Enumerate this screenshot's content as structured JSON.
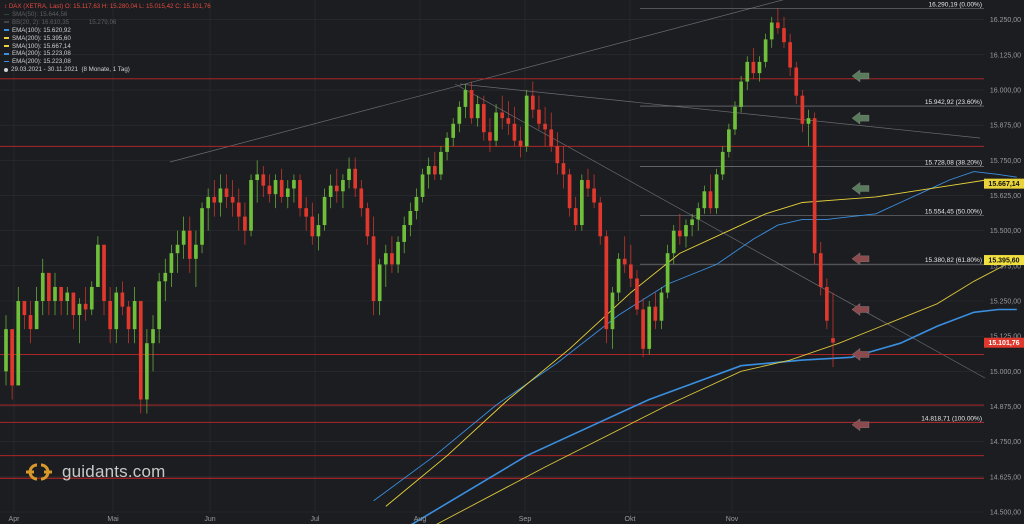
{
  "header": {
    "symbol_prefix": "↕",
    "symbol": "DAX (XETRA, Last)",
    "ohlc": "O: 15.117,63   H: 15.280,04   L: 15.015,42   C: 15.101,76"
  },
  "legend": [
    {
      "label": "SMA(50)",
      "value": "15.644,56",
      "color": "#3fa34d",
      "dim": true
    },
    {
      "label": "BB(20, 2)",
      "value": "16.610,35",
      "value2": "15.279,06",
      "color": "#8a8a8a",
      "dim": true
    },
    {
      "label": "EMA(100)",
      "value": "15.620,92",
      "color": "#3a8fe0",
      "dim": false
    },
    {
      "label": "SMA(200)",
      "value": "15.395,60",
      "color": "#e8d33a",
      "dim": false
    },
    {
      "label": "SMA(100)",
      "value": "15.667,14",
      "color": "#e8d33a",
      "dim": false
    },
    {
      "label": "EMA(200)",
      "value": "15.223,08",
      "color": "#3a8fe0",
      "dim": false
    },
    {
      "label": "EMA(200)",
      "value": "15.223,08",
      "color": "#3a8fe0",
      "dim": false
    }
  ],
  "date_range": "29.03.2021 - 30.11.2021",
  "date_range_note": "(8 Monate, 1 Tag)",
  "logo_text": "guidants.com",
  "colors": {
    "background": "#1c1d21",
    "up": "#6fbf3b",
    "down": "#e0382c",
    "grid": "#2c2e33",
    "fib": "#c0282a",
    "ema100": "#3a8fe0",
    "ema200": "#3a8fe0",
    "sma100": "#e8d33a",
    "sma200": "#d8c43a",
    "price_badge": "#e0382c",
    "sma100_badge": "#e8d33a",
    "sma200_badge": "#f0e040",
    "arrow_green": "#5a7a5c",
    "arrow_red": "#8a4a4e"
  },
  "chart_data": {
    "type": "candlestick",
    "x_tick_labels": [
      "Apr",
      "Mai",
      "Jun",
      "Jul",
      "Aug",
      "Sep",
      "Okt",
      "Nov"
    ],
    "y_tick_labels": [
      "14.500,00",
      "14.625,00",
      "14.750,00",
      "14.875,00",
      "15.000,00",
      "15.125,00",
      "15.250,00",
      "15.375,00",
      "15.500,00",
      "15.625,00",
      "15.750,00",
      "15.875,00",
      "16.000,00",
      "16.125,00",
      "16.250,00"
    ],
    "ylim": [
      14500,
      16320
    ],
    "fib_levels": [
      {
        "price": 16290.19,
        "label": "16.290,19 (0.00%)"
      },
      {
        "price": 15942.92,
        "label": "15.942,92 (23.60%)"
      },
      {
        "price": 15728.08,
        "label": "15.728,08 (38.20%)"
      },
      {
        "price": 15554.45,
        "label": "15.554,45 (50.00%)"
      },
      {
        "price": 15380.82,
        "label": "15.380,82 (61.80%)"
      },
      {
        "price": 14818.71,
        "label": "14.818,71 (100.00%)"
      }
    ],
    "horizontal_red_lines": [
      16040,
      15800,
      15060,
      14880,
      14818.71,
      14700,
      14620
    ],
    "badges": [
      {
        "price": 15667.14,
        "label": "15.667,14",
        "kind": "sma100"
      },
      {
        "price": 15395.6,
        "label": "15.395,60",
        "kind": "sma200"
      },
      {
        "price": 15101.76,
        "label": "15.101,76",
        "kind": "price"
      }
    ],
    "arrows": [
      {
        "price": 16050,
        "color": "green"
      },
      {
        "price": 15900,
        "color": "green"
      },
      {
        "price": 15650,
        "color": "green"
      },
      {
        "price": 15400,
        "color": "red"
      },
      {
        "price": 15220,
        "color": "red"
      },
      {
        "price": 15060,
        "color": "red"
      },
      {
        "price": 14810,
        "color": "red"
      }
    ],
    "candles": [
      [
        15000,
        15200,
        14950,
        15150
      ],
      [
        15150,
        15150,
        14900,
        14950
      ],
      [
        14950,
        15300,
        14950,
        15250
      ],
      [
        15250,
        15250,
        15150,
        15200
      ],
      [
        15200,
        15250,
        15100,
        15150
      ],
      [
        15150,
        15300,
        15150,
        15250
      ],
      [
        15250,
        15400,
        15200,
        15350
      ],
      [
        15350,
        15350,
        15200,
        15250
      ],
      [
        15250,
        15350,
        15200,
        15300
      ],
      [
        15300,
        15300,
        15200,
        15250
      ],
      [
        15250,
        15300,
        15200,
        15280
      ],
      [
        15280,
        15280,
        15150,
        15200
      ],
      [
        15200,
        15260,
        15100,
        15240
      ],
      [
        15240,
        15300,
        15180,
        15220
      ],
      [
        15220,
        15320,
        15200,
        15300
      ],
      [
        15300,
        15480,
        15300,
        15450
      ],
      [
        15450,
        15450,
        15200,
        15250
      ],
      [
        15250,
        15300,
        15100,
        15150
      ],
      [
        15150,
        15300,
        15100,
        15280
      ],
      [
        15280,
        15320,
        15200,
        15230
      ],
      [
        15230,
        15250,
        15100,
        15150
      ],
      [
        15150,
        15300,
        15100,
        15250
      ],
      [
        15250,
        15250,
        14850,
        14900
      ],
      [
        14900,
        15150,
        14850,
        15100
      ],
      [
        15100,
        15200,
        15000,
        15150
      ],
      [
        15150,
        15350,
        15100,
        15320
      ],
      [
        15320,
        15400,
        15250,
        15350
      ],
      [
        15350,
        15450,
        15300,
        15420
      ],
      [
        15420,
        15500,
        15350,
        15450
      ],
      [
        15450,
        15550,
        15400,
        15500
      ],
      [
        15500,
        15550,
        15350,
        15400
      ],
      [
        15400,
        15500,
        15300,
        15450
      ],
      [
        15450,
        15600,
        15420,
        15580
      ],
      [
        15580,
        15650,
        15500,
        15620
      ],
      [
        15620,
        15680,
        15550,
        15600
      ],
      [
        15600,
        15700,
        15550,
        15650
      ],
      [
        15650,
        15700,
        15580,
        15620
      ],
      [
        15620,
        15680,
        15550,
        15600
      ],
      [
        15600,
        15650,
        15500,
        15550
      ],
      [
        15550,
        15600,
        15450,
        15500
      ],
      [
        15500,
        15700,
        15480,
        15680
      ],
      [
        15680,
        15750,
        15600,
        15700
      ],
      [
        15700,
        15730,
        15620,
        15660
      ],
      [
        15660,
        15700,
        15600,
        15630
      ],
      [
        15630,
        15700,
        15580,
        15680
      ],
      [
        15680,
        15720,
        15600,
        15620
      ],
      [
        15620,
        15680,
        15580,
        15650
      ],
      [
        15650,
        15700,
        15600,
        15680
      ],
      [
        15680,
        15700,
        15550,
        15580
      ],
      [
        15580,
        15620,
        15500,
        15550
      ],
      [
        15550,
        15600,
        15450,
        15480
      ],
      [
        15480,
        15560,
        15430,
        15520
      ],
      [
        15520,
        15650,
        15500,
        15620
      ],
      [
        15620,
        15700,
        15580,
        15660
      ],
      [
        15660,
        15720,
        15600,
        15640
      ],
      [
        15640,
        15700,
        15580,
        15680
      ],
      [
        15680,
        15760,
        15650,
        15720
      ],
      [
        15720,
        15760,
        15620,
        15650
      ],
      [
        15650,
        15680,
        15550,
        15580
      ],
      [
        15580,
        15600,
        15450,
        15480
      ],
      [
        15480,
        15550,
        15200,
        15250
      ],
      [
        15250,
        15400,
        15200,
        15380
      ],
      [
        15380,
        15450,
        15300,
        15420
      ],
      [
        15420,
        15480,
        15350,
        15380
      ],
      [
        15380,
        15480,
        15350,
        15460
      ],
      [
        15460,
        15550,
        15420,
        15520
      ],
      [
        15520,
        15600,
        15480,
        15570
      ],
      [
        15570,
        15650,
        15540,
        15620
      ],
      [
        15620,
        15720,
        15600,
        15700
      ],
      [
        15700,
        15760,
        15650,
        15730
      ],
      [
        15730,
        15780,
        15680,
        15700
      ],
      [
        15700,
        15800,
        15680,
        15780
      ],
      [
        15780,
        15850,
        15750,
        15830
      ],
      [
        15830,
        15900,
        15800,
        15880
      ],
      [
        15880,
        15960,
        15850,
        15940
      ],
      [
        15940,
        16020,
        15900,
        16000
      ],
      [
        16000,
        16030,
        15880,
        15900
      ],
      [
        15900,
        15980,
        15870,
        15950
      ],
      [
        15950,
        15980,
        15820,
        15850
      ],
      [
        15850,
        15900,
        15780,
        15820
      ],
      [
        15820,
        15950,
        15800,
        15920
      ],
      [
        15920,
        15980,
        15860,
        15900
      ],
      [
        15900,
        15960,
        15840,
        15880
      ],
      [
        15880,
        15940,
        15800,
        15820
      ],
      [
        15820,
        15870,
        15760,
        15800
      ],
      [
        15800,
        16000,
        15780,
        15980
      ],
      [
        15980,
        16030,
        15900,
        15930
      ],
      [
        15930,
        15980,
        15860,
        15880
      ],
      [
        15880,
        15940,
        15800,
        15860
      ],
      [
        15860,
        15920,
        15780,
        15800
      ],
      [
        15800,
        15850,
        15700,
        15740
      ],
      [
        15740,
        15800,
        15650,
        15700
      ],
      [
        15700,
        15720,
        15550,
        15580
      ],
      [
        15580,
        15620,
        15500,
        15520
      ],
      [
        15520,
        15700,
        15500,
        15680
      ],
      [
        15680,
        15720,
        15620,
        15650
      ],
      [
        15650,
        15700,
        15580,
        15600
      ],
      [
        15600,
        15620,
        15450,
        15480
      ],
      [
        15480,
        15500,
        15100,
        15150
      ],
      [
        15150,
        15300,
        15080,
        15280
      ],
      [
        15280,
        15420,
        15250,
        15400
      ],
      [
        15400,
        15480,
        15350,
        15380
      ],
      [
        15380,
        15450,
        15300,
        15330
      ],
      [
        15330,
        15360,
        15200,
        15220
      ],
      [
        15220,
        15260,
        15050,
        15080
      ],
      [
        15080,
        15250,
        15060,
        15230
      ],
      [
        15230,
        15280,
        15150,
        15180
      ],
      [
        15180,
        15300,
        15150,
        15280
      ],
      [
        15280,
        15450,
        15260,
        15420
      ],
      [
        15420,
        15520,
        15380,
        15500
      ],
      [
        15500,
        15560,
        15450,
        15480
      ],
      [
        15480,
        15540,
        15440,
        15520
      ],
      [
        15520,
        15560,
        15480,
        15540
      ],
      [
        15540,
        15600,
        15500,
        15580
      ],
      [
        15580,
        15660,
        15560,
        15640
      ],
      [
        15640,
        15700,
        15560,
        15580
      ],
      [
        15580,
        15720,
        15560,
        15700
      ],
      [
        15700,
        15800,
        15680,
        15780
      ],
      [
        15780,
        15880,
        15760,
        15860
      ],
      [
        15860,
        15960,
        15840,
        15940
      ],
      [
        15940,
        16050,
        15920,
        16030
      ],
      [
        16030,
        16120,
        16000,
        16100
      ],
      [
        16100,
        16150,
        16040,
        16060
      ],
      [
        16060,
        16120,
        16030,
        16100
      ],
      [
        16100,
        16200,
        16080,
        16180
      ],
      [
        16180,
        16260,
        16150,
        16240
      ],
      [
        16240,
        16290,
        16200,
        16220
      ],
      [
        16220,
        16260,
        16150,
        16170
      ],
      [
        16170,
        16200,
        16050,
        16080
      ],
      [
        16080,
        16100,
        15950,
        15980
      ],
      [
        15980,
        16000,
        15850,
        15880
      ],
      [
        15880,
        15930,
        15800,
        15900
      ],
      [
        15900,
        15920,
        15380,
        15420
      ],
      [
        15420,
        15460,
        15270,
        15300
      ],
      [
        15300,
        15330,
        15150,
        15180
      ],
      [
        15118,
        15280,
        15015,
        15102
      ]
    ]
  }
}
